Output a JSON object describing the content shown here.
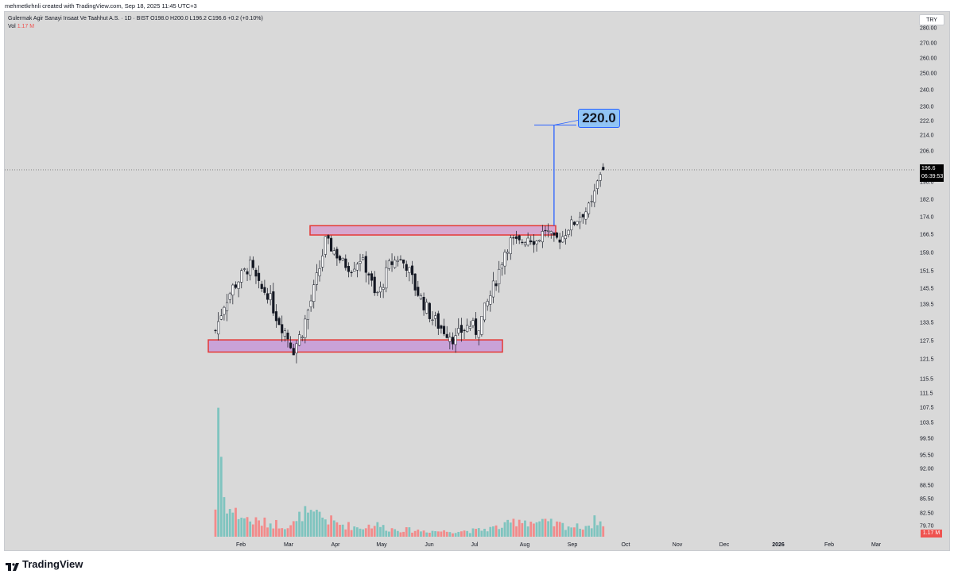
{
  "header": {
    "credit": "mehmetkrhnli created with TradingView.com, Sep 18, 2025 11:45 UTC+3",
    "legend_line1": "Gulermak Agir Sanayi Insaat Ve Taahhut A.S. · 1D · BIST  O198.0  H200.0  L196.2  C196.6  +0.2 (+0.10%)",
    "vol_label": "Vol",
    "vol_value": "1.17 M",
    "currency": "TRY"
  },
  "price_axis": {
    "ticks": [
      "280.00",
      "270.00",
      "260.00",
      "250.00",
      "240.0",
      "230.0",
      "222.0",
      "214.0",
      "206.0",
      "190.0",
      "182.0",
      "174.0",
      "166.5",
      "159.0",
      "151.5",
      "145.5",
      "139.5",
      "133.5",
      "127.5",
      "121.5",
      "115.5",
      "111.5",
      "107.5",
      "103.5",
      "99.50",
      "95.50",
      "92.00",
      "88.50",
      "85.50",
      "82.50",
      "79.70"
    ],
    "last_price": "196.6",
    "countdown": "06:39:53",
    "vol_badge": "1.17 M"
  },
  "time_axis": {
    "labels": [
      "Feb",
      "Mar",
      "Apr",
      "May",
      "Jun",
      "Jul",
      "Aug",
      "Sep",
      "Oct",
      "Nov",
      "Dec",
      "2026",
      "Feb",
      "Mar"
    ]
  },
  "annotations": {
    "target_label": "220.0",
    "target_value": 220.0,
    "resistance_zone": [
      166.5,
      170.5
    ],
    "support_zone": [
      124.0,
      128.0
    ]
  },
  "chart_data": {
    "type": "candlestick",
    "symbol": "Gulermak Agir Sanayi Insaat Ve Taahhut A.S.",
    "interval": "1D",
    "exchange": "BIST",
    "last": {
      "open": 198.0,
      "high": 200.0,
      "low": 196.2,
      "close": 196.6,
      "change": 0.2,
      "change_pct": 0.1
    },
    "close_path": [
      [
        0,
        131
      ],
      [
        3,
        140
      ],
      [
        6,
        146
      ],
      [
        9,
        150
      ],
      [
        12,
        154
      ],
      [
        15,
        146
      ],
      [
        18,
        144
      ],
      [
        21,
        136
      ],
      [
        24,
        131
      ],
      [
        27,
        125
      ],
      [
        30,
        131
      ],
      [
        33,
        141
      ],
      [
        36,
        153
      ],
      [
        38,
        164
      ],
      [
        41,
        160
      ],
      [
        44,
        155
      ],
      [
        47,
        153
      ],
      [
        50,
        157
      ],
      [
        53,
        151
      ],
      [
        55,
        143
      ],
      [
        57,
        145
      ],
      [
        60,
        154
      ],
      [
        63,
        157
      ],
      [
        66,
        154
      ],
      [
        69,
        146
      ],
      [
        72,
        140
      ],
      [
        75,
        135
      ],
      [
        78,
        132
      ],
      [
        81,
        130
      ],
      [
        83,
        128
      ],
      [
        85,
        131
      ],
      [
        88,
        133
      ],
      [
        90,
        131
      ],
      [
        92,
        135
      ],
      [
        95,
        143
      ],
      [
        98,
        152
      ],
      [
        100,
        160
      ],
      [
        102,
        164
      ],
      [
        105,
        163
      ],
      [
        108,
        166
      ],
      [
        111,
        164
      ],
      [
        114,
        169
      ],
      [
        117,
        164
      ],
      [
        120,
        166
      ],
      [
        122,
        170
      ],
      [
        124,
        172
      ],
      [
        126,
        175
      ],
      [
        128,
        177
      ],
      [
        130,
        180
      ],
      [
        133,
        195
      ],
      [
        134,
        196.6
      ]
    ],
    "volume_path": [
      [
        0,
        3.2
      ],
      [
        1,
        14.5
      ],
      [
        2,
        9
      ],
      [
        3,
        4.5
      ],
      [
        5,
        3
      ],
      [
        8,
        2.5
      ],
      [
        12,
        1.8
      ],
      [
        16,
        1.6
      ],
      [
        20,
        1.5
      ],
      [
        24,
        1.3
      ],
      [
        28,
        1.5
      ],
      [
        30,
        2.8
      ],
      [
        33,
        2.2
      ],
      [
        36,
        2.5
      ],
      [
        38,
        2.0
      ],
      [
        42,
        1.5
      ],
      [
        50,
        1.0
      ],
      [
        55,
        1.4
      ],
      [
        60,
        0.9
      ],
      [
        70,
        0.7
      ],
      [
        80,
        0.6
      ],
      [
        90,
        0.7
      ],
      [
        100,
        1.2
      ],
      [
        105,
        2.0
      ],
      [
        110,
        1.6
      ],
      [
        115,
        1.5
      ],
      [
        120,
        1.3
      ],
      [
        125,
        1.1
      ],
      [
        130,
        1.4
      ],
      [
        132,
        2.1
      ],
      [
        134,
        1.17
      ]
    ],
    "volume_unit": "M",
    "ylim_price": [
      79.7,
      280.0
    ],
    "xlabel": "",
    "ylabel": ""
  },
  "logo": {
    "text": "TradingView"
  }
}
